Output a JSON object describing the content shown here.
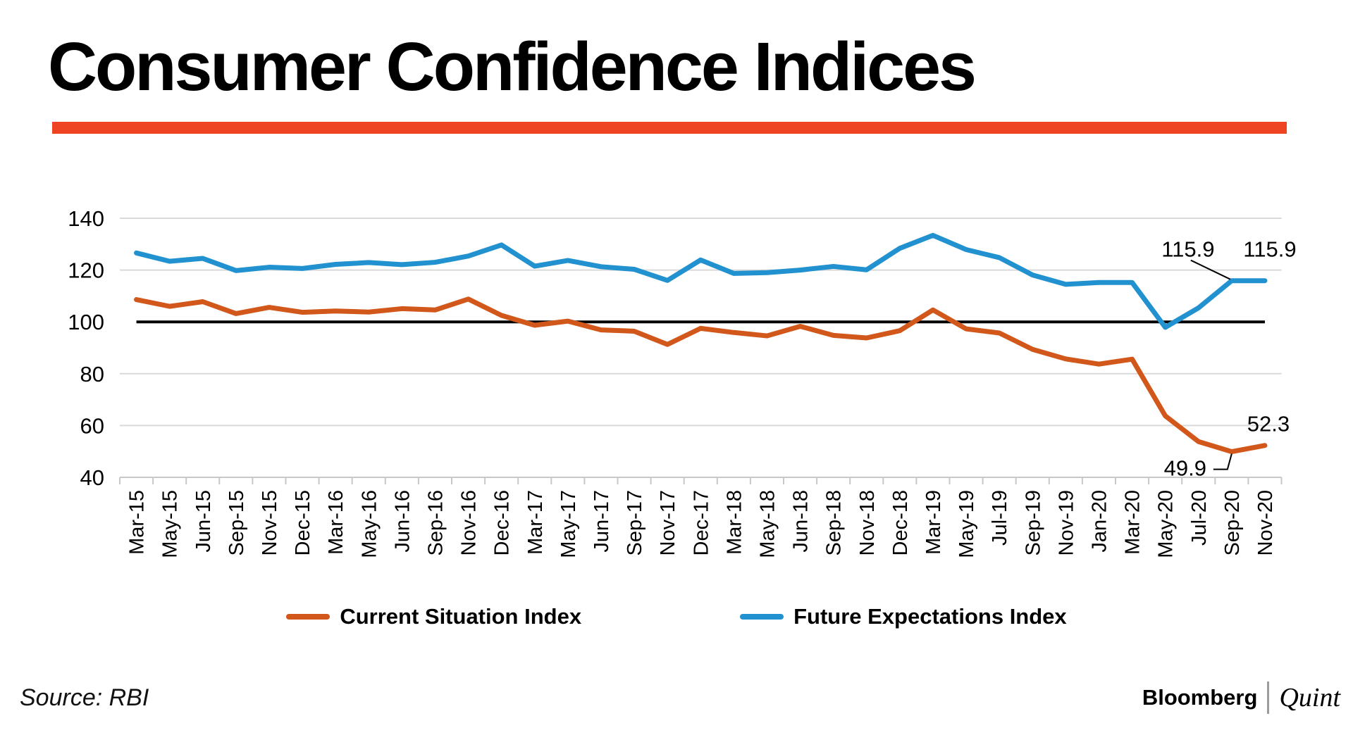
{
  "page": {
    "title": "Consumer Confidence Indices",
    "source_label": "Source: RBI",
    "brand": {
      "first": "Bloomberg",
      "second": "Quint"
    }
  },
  "colors": {
    "divider_bar": "#ee4424",
    "csi_line": "#d2571b",
    "fei_line": "#2191d0",
    "gridline": "#d9d9d9",
    "axis": "#c8c8c8",
    "baseline": "#000000"
  },
  "legend": {
    "items": [
      {
        "label": "Current Situation Index",
        "color": "#d2571b"
      },
      {
        "label": "Future Expectations Index",
        "color": "#2191d0"
      }
    ]
  },
  "chart_data": {
    "type": "line",
    "title": "Consumer Confidence Indices",
    "xlabel": "",
    "ylabel": "",
    "ylim": [
      40,
      140
    ],
    "yticks": [
      40,
      60,
      80,
      100,
      120,
      140
    ],
    "baseline": 100,
    "grid": true,
    "legend_position": "bottom",
    "categories": [
      "Mar-15",
      "May-15",
      "Jun-15",
      "Sep-15",
      "Nov-15",
      "Dec-15",
      "Mar-16",
      "May-16",
      "Jun-16",
      "Sep-16",
      "Nov-16",
      "Dec-16",
      "Mar-17",
      "May-17",
      "Jun-17",
      "Sep-17",
      "Nov-17",
      "Dec-17",
      "Mar-18",
      "May-18",
      "Jun-18",
      "Sep-18",
      "Nov-18",
      "Dec-18",
      "Mar-19",
      "May-19",
      "Jul-19",
      "Sep-19",
      "Nov-19",
      "Jan-20",
      "Mar-20",
      "May-20",
      "Jul-20",
      "Sep-20",
      "Nov-20"
    ],
    "series": [
      {
        "name": "Current Situation Index",
        "color": "#d2571b",
        "values": [
          108.6,
          106.0,
          107.8,
          103.2,
          105.6,
          103.7,
          104.2,
          103.8,
          105.1,
          104.6,
          108.8,
          102.5,
          98.7,
          100.3,
          96.9,
          96.4,
          91.3,
          97.5,
          95.9,
          94.6,
          98.3,
          94.8,
          93.8,
          96.6,
          104.6,
          97.3,
          95.7,
          89.4,
          85.7,
          83.7,
          85.6,
          63.7,
          53.8,
          49.9,
          52.3
        ]
      },
      {
        "name": "Future Expectations Index",
        "color": "#2191d0",
        "values": [
          126.6,
          123.4,
          124.5,
          119.8,
          121.1,
          120.6,
          122.2,
          122.9,
          122.1,
          123.0,
          125.4,
          129.7,
          121.5,
          123.7,
          121.3,
          120.3,
          116.0,
          123.9,
          118.7,
          119.0,
          120.0,
          121.4,
          120.1,
          128.4,
          133.4,
          127.9,
          124.8,
          118.1,
          114.5,
          115.2,
          115.2,
          97.9,
          105.4,
          115.9,
          115.9
        ]
      }
    ],
    "annotations": [
      {
        "text": "115.9",
        "series": "Future Expectations Index",
        "category": "Sep-20",
        "leader": true
      },
      {
        "text": "115.9",
        "series": "Future Expectations Index",
        "category": "Nov-20",
        "leader": false
      },
      {
        "text": "52.3",
        "series": "Current Situation Index",
        "category": "Nov-20",
        "leader": false
      },
      {
        "text": "49.9",
        "series": "Current Situation Index",
        "category": "Sep-20",
        "leader": true
      }
    ]
  }
}
